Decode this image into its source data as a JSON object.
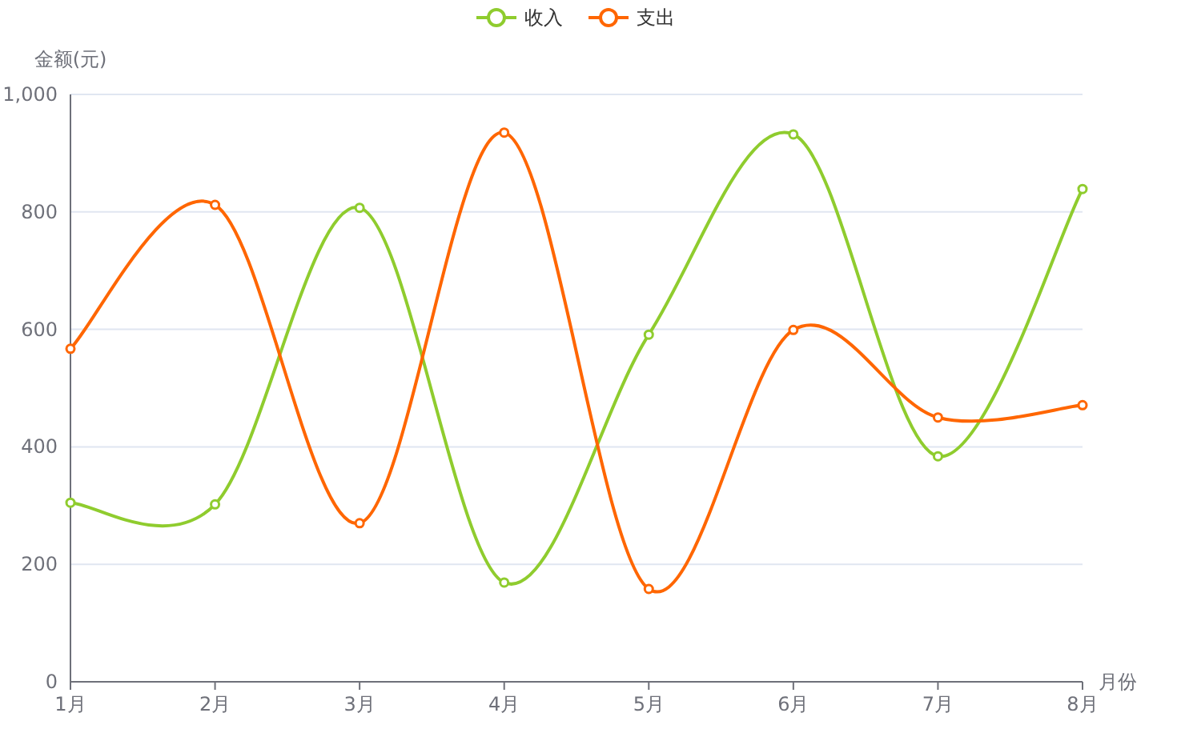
{
  "chart_data": {
    "type": "line",
    "xlabel": "月份",
    "ylabel": "金额(元)",
    "categories": [
      "1月",
      "2月",
      "3月",
      "4月",
      "5月",
      "6月",
      "7月",
      "8月"
    ],
    "series": [
      {
        "name": "收入",
        "color": "#8fcc2e",
        "values": [
          305,
          302,
          807,
          169,
          591,
          932,
          384,
          839
        ]
      },
      {
        "name": "支出",
        "color": "#ff6600",
        "values": [
          567,
          812,
          270,
          935,
          158,
          599,
          450,
          471
        ]
      }
    ],
    "ylim": [
      0,
      1000
    ],
    "yticks": [
      0,
      200,
      400,
      600,
      800,
      {
        "value": 1000,
        "label": "1,000"
      }
    ],
    "grid": "y",
    "legend": "top",
    "marker": "circle",
    "line_style": "solid"
  }
}
